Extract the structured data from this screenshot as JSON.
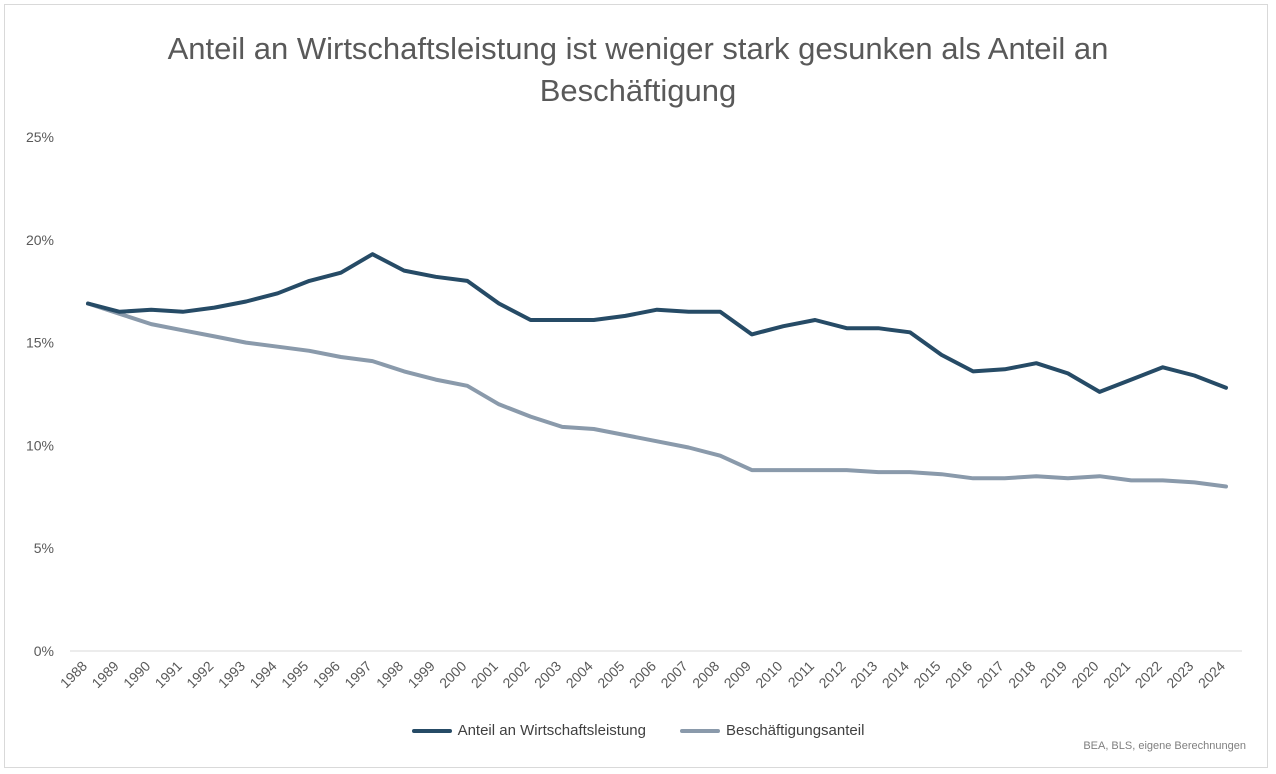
{
  "chart_data": {
    "type": "line",
    "title_line1": "Anteil an Wirtschaftsleistung ist weniger stark gesunken als Anteil an",
    "title_line2": "Beschäftigung",
    "x": [
      "1988",
      "1989",
      "1990",
      "1991",
      "1992",
      "1993",
      "1994",
      "1995",
      "1996",
      "1997",
      "1998",
      "1999",
      "2000",
      "2001",
      "2002",
      "2003",
      "2004",
      "2005",
      "2006",
      "2007",
      "2008",
      "2009",
      "2010",
      "2011",
      "2012",
      "2013",
      "2014",
      "2015",
      "2016",
      "2017",
      "2018",
      "2019",
      "2020",
      "2021",
      "2022",
      "2023",
      "2024"
    ],
    "y_ticks": [
      "0%",
      "5%",
      "10%",
      "15%",
      "20%",
      "25%"
    ],
    "y_tick_values": [
      0,
      5,
      10,
      15,
      20,
      25
    ],
    "ylim": [
      0,
      25
    ],
    "grid": "none",
    "legend_position": "bottom",
    "series": [
      {
        "name": "Anteil an Wirtschaftsleistung",
        "color": "#264b66",
        "values": [
          16.9,
          16.5,
          16.6,
          16.5,
          16.7,
          17.0,
          17.4,
          18.0,
          18.4,
          19.3,
          18.5,
          18.2,
          18.0,
          16.9,
          16.1,
          16.1,
          16.1,
          16.3,
          16.6,
          16.5,
          16.5,
          15.4,
          15.8,
          16.1,
          15.7,
          15.7,
          15.5,
          14.4,
          13.6,
          13.7,
          14.0,
          13.5,
          12.6,
          13.2,
          13.8,
          13.4,
          12.8
        ]
      },
      {
        "name": "Beschäftigungsanteil",
        "color": "#8a9aab",
        "values": [
          16.9,
          16.4,
          15.9,
          15.6,
          15.3,
          15.0,
          14.8,
          14.6,
          14.3,
          14.1,
          13.6,
          13.2,
          12.9,
          12.0,
          11.4,
          10.9,
          10.8,
          10.5,
          10.2,
          9.9,
          9.5,
          8.8,
          8.8,
          8.8,
          8.8,
          8.7,
          8.7,
          8.6,
          8.4,
          8.4,
          8.5,
          8.4,
          8.5,
          8.3,
          8.3,
          8.2,
          8.0
        ]
      }
    ],
    "source": "BEA, BLS, eigene Berechnungen"
  }
}
